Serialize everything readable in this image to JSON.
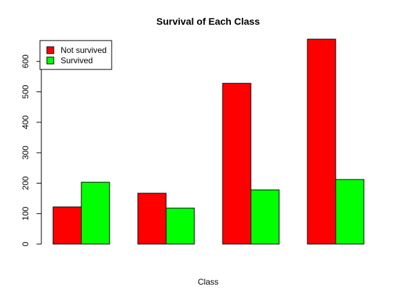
{
  "chart_data": {
    "type": "bar",
    "title": "Survival of Each Class",
    "xlabel": "Class",
    "ylabel": "",
    "categories": [
      "",
      "",
      "",
      ""
    ],
    "series": [
      {
        "name": "Not survived",
        "color": "#ff0000",
        "values": [
          122,
          167,
          528,
          673
        ]
      },
      {
        "name": "Survived",
        "color": "#00ff00",
        "values": [
          203,
          118,
          178,
          212
        ]
      }
    ],
    "ylim": [
      0,
      700
    ],
    "yticks": [
      0,
      100,
      200,
      300,
      400,
      500,
      600
    ],
    "grid": false,
    "legend_position": "top-left"
  }
}
